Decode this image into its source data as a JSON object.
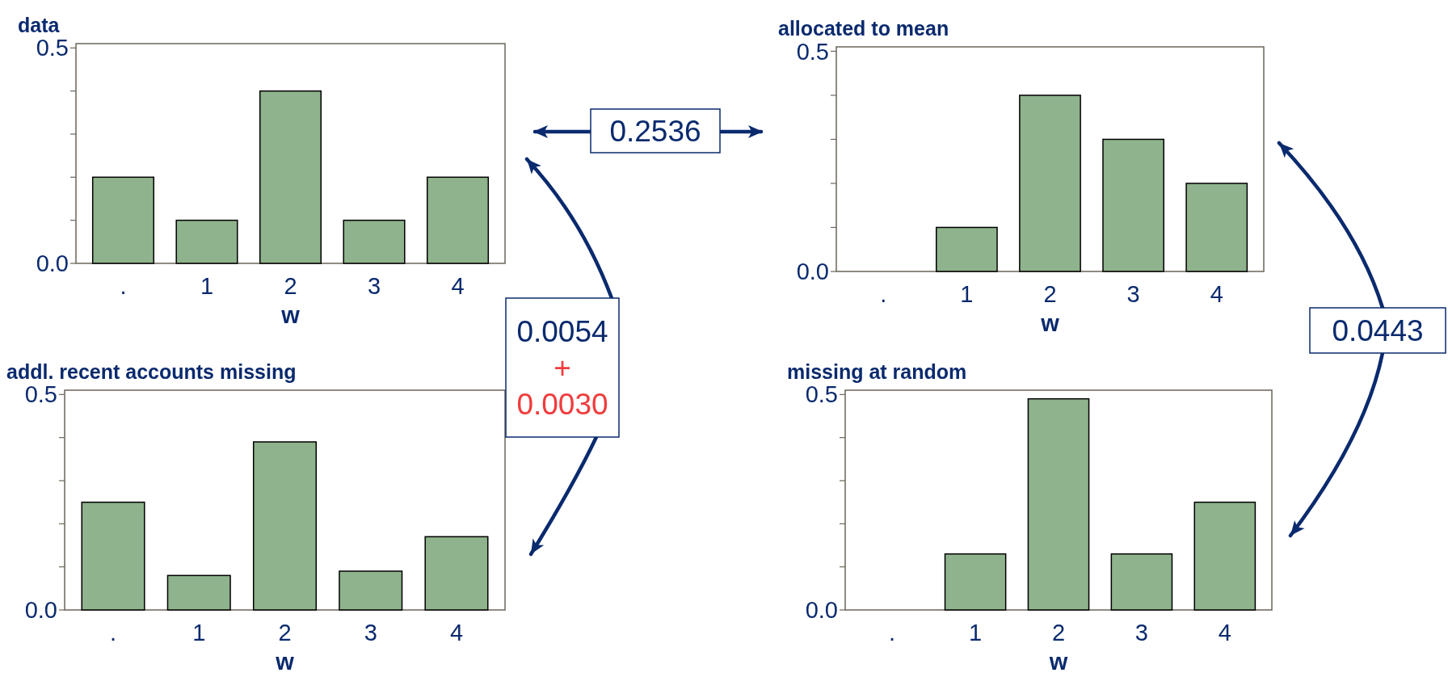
{
  "chart_data": [
    {
      "type": "bar",
      "title": "data",
      "xlabel": "w",
      "categories": [
        ".",
        "1",
        "2",
        "3",
        "4"
      ],
      "values": [
        0.2,
        0.1,
        0.4,
        0.1,
        0.2
      ],
      "color": "#8fb38c",
      "ylim": [
        0,
        0.51
      ],
      "yticks": [
        {
          "value": 0,
          "label": "0.0"
        },
        {
          "value": 0.1,
          "label": null
        },
        {
          "value": 0.2,
          "label": null
        },
        {
          "value": 0.3,
          "label": null
        },
        {
          "value": 0.4,
          "label": null
        },
        {
          "value": 0.5,
          "label": "0.5"
        }
      ]
    },
    {
      "type": "bar",
      "title": "allocated to mean",
      "xlabel": "w",
      "categories": [
        ".",
        "1",
        "2",
        "3",
        "4"
      ],
      "values": [
        0,
        0.1,
        0.4,
        0.3,
        0.2
      ],
      "color": "#8fb38c",
      "ylim": [
        0,
        0.51
      ],
      "yticks": [
        {
          "value": 0,
          "label": "0.0"
        },
        {
          "value": 0.1,
          "label": null
        },
        {
          "value": 0.2,
          "label": null
        },
        {
          "value": 0.3,
          "label": null
        },
        {
          "value": 0.4,
          "label": null
        },
        {
          "value": 0.5,
          "label": "0.5"
        }
      ]
    },
    {
      "type": "bar",
      "title": "addl. recent accounts missing",
      "xlabel": "w",
      "categories": [
        ".",
        "1",
        "2",
        "3",
        "4"
      ],
      "values": [
        0.25,
        0.08,
        0.39,
        0.09,
        0.17
      ],
      "color": "#8fb38c",
      "ylim": [
        0,
        0.51
      ],
      "yticks": [
        {
          "value": 0,
          "label": "0.0"
        },
        {
          "value": 0.1,
          "label": null
        },
        {
          "value": 0.2,
          "label": null
        },
        {
          "value": 0.3,
          "label": null
        },
        {
          "value": 0.4,
          "label": null
        },
        {
          "value": 0.5,
          "label": "0.5"
        }
      ]
    },
    {
      "type": "bar",
      "title": "missing at random",
      "xlabel": "w",
      "categories": [
        ".",
        "1",
        "2",
        "3",
        "4"
      ],
      "values": [
        0,
        0.13,
        0.49,
        0.13,
        0.25
      ],
      "color": "#8fb38c",
      "ylim": [
        0,
        0.51
      ],
      "yticks": [
        {
          "value": 0,
          "label": "0.0"
        },
        {
          "value": 0.1,
          "label": null
        },
        {
          "value": 0.2,
          "label": null
        },
        {
          "value": 0.3,
          "label": null
        },
        {
          "value": 0.4,
          "label": null
        },
        {
          "value": 0.5,
          "label": "0.5"
        }
      ]
    },
    {
      "type": "other",
      "annotations": [
        "0.2536",
        "0.0054",
        "+",
        "0.0030",
        "0.0443"
      ]
    }
  ]
}
